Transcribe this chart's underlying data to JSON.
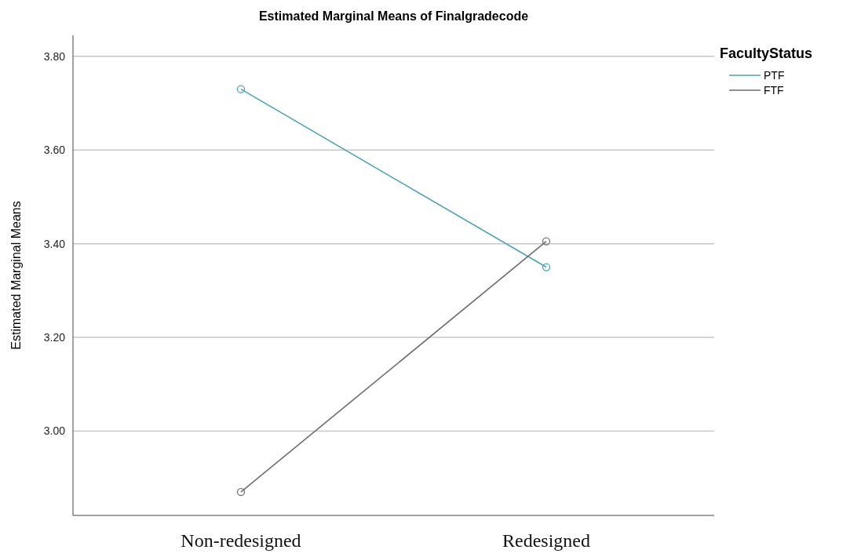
{
  "chart_data": {
    "type": "line",
    "title": "Estimated Marginal Means of Finalgradecode",
    "ylabel": "Estimated Marginal Means",
    "legend_title": "FacultyStatus",
    "categories": [
      "Non-redesigned",
      "Redesigned"
    ],
    "series": [
      {
        "name": "PTF",
        "color": "#4ba3b9",
        "values": [
          3.73,
          3.35
        ]
      },
      {
        "name": "FTF",
        "color": "#6e6e6e",
        "values": [
          2.87,
          3.405
        ]
      }
    ],
    "ylim": [
      2.82,
      3.845
    ],
    "yticks": [
      {
        "value": 3.0,
        "label": "3.00"
      },
      {
        "value": 3.2,
        "label": "3.20"
      },
      {
        "value": 3.4,
        "label": "3.40"
      },
      {
        "value": 3.6,
        "label": "3.60"
      },
      {
        "value": 3.8,
        "label": "3.80"
      }
    ],
    "grid": "y",
    "legend": "top right",
    "marker": "circle",
    "line_style": "solid"
  }
}
